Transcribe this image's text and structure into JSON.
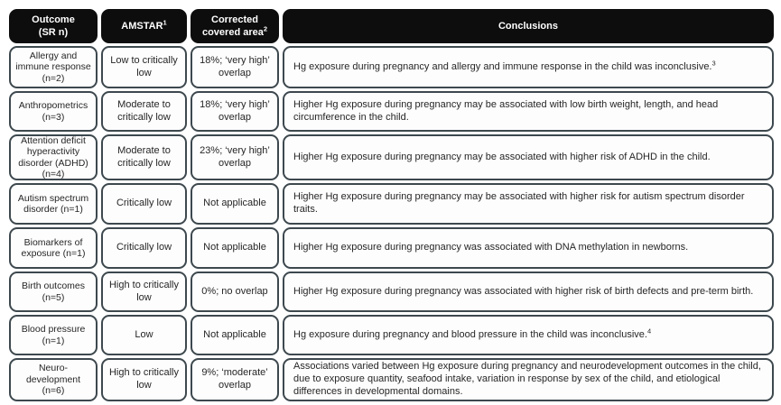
{
  "colors": {
    "header_bg": "#0d0d0d",
    "header_text": "#ffffff",
    "cell_border": "#3d484e",
    "cell_bg": "#fdfdfd",
    "text": "#262626"
  },
  "table": {
    "headers": [
      {
        "text": "Outcome\n(SR n)"
      },
      {
        "text": "AMSTAR",
        "sup": "1"
      },
      {
        "text": "Corrected covered area",
        "sup": "2"
      },
      {
        "text": "Conclusions"
      }
    ],
    "rows": [
      {
        "outcome": "Allergy and immune response (n=2)",
        "amstar": "Low to critically low",
        "coverage": "18%; ‘very high’ overlap",
        "conclusion": "Hg exposure during pregnancy and allergy and immune response in the child was inconclusive.",
        "conclusion_sup": "3"
      },
      {
        "outcome": "Anthropometrics (n=3)",
        "amstar": "Moderate to critically low",
        "coverage": "18%; ‘very high’ overlap",
        "conclusion": "Higher Hg exposure during pregnancy may be associated with low birth weight, length, and head circumference in the child."
      },
      {
        "outcome": "Attention deficit hyperactivity disorder (ADHD) (n=4)",
        "amstar": "Moderate to critically low",
        "coverage": "23%; ‘very high’ overlap",
        "conclusion": "Higher Hg exposure during pregnancy may be associated with higher risk of ADHD in the child."
      },
      {
        "outcome": "Autism spectrum disorder (n=1)",
        "amstar": "Critically low",
        "coverage": "Not applicable",
        "conclusion": "Higher Hg exposure during pregnancy may be associated with higher risk for autism spectrum disorder traits."
      },
      {
        "outcome": "Biomarkers of exposure (n=1)",
        "amstar": "Critically low",
        "coverage": "Not applicable",
        "conclusion": "Higher Hg exposure during pregnancy was associated with DNA methylation in newborns."
      },
      {
        "outcome": "Birth outcomes (n=5)",
        "amstar": "High to critically low",
        "coverage": "0%; no overlap",
        "conclusion": "Higher Hg exposure during pregnancy was associated with higher risk of birth defects and pre-term birth."
      },
      {
        "outcome": "Blood pressure (n=1)",
        "amstar": "Low",
        "coverage": "Not applicable",
        "conclusion": "Hg exposure during pregnancy and blood pressure in the child was inconclusive.",
        "conclusion_sup": "4"
      },
      {
        "outcome": "Neuro-development (n=6)",
        "amstar": "High to critically low",
        "coverage": "9%; ‘moderate’ overlap",
        "conclusion": "Associations varied between Hg exposure during pregnancy and neurodevelopment outcomes in the child, due to exposure quantity, seafood intake, variation in response by sex of the child, and etiological differences in developmental domains."
      }
    ]
  }
}
